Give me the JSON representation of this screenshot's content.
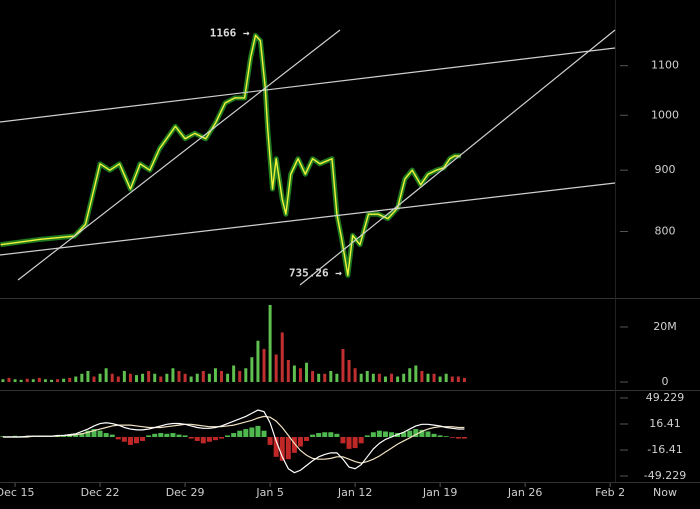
{
  "chart_data": [
    {
      "type": "line",
      "log_scale": true,
      "color": "#f2f23a",
      "shadow_color": "#1f7a1f",
      "xlim": [
        -1.24,
        49.4
      ],
      "ylim": [
        704,
        1248
      ],
      "xticks": [
        {
          "value": 0,
          "label": "Dec 15"
        },
        {
          "value": 7,
          "label": "Dec 22"
        },
        {
          "value": 14,
          "label": "Dec 29"
        },
        {
          "value": 21,
          "label": "Jan 5"
        },
        {
          "value": 28,
          "label": "Jan 12"
        },
        {
          "value": 35,
          "label": "Jan 19"
        },
        {
          "value": 42,
          "label": "Jan 26"
        },
        {
          "value": 49,
          "label": "Feb 2"
        }
      ],
      "yticks": [
        800,
        900,
        1000,
        1100
      ],
      "x": [
        -1.2,
        2.1,
        4.9,
        5.8,
        7.0,
        7.8,
        8.6,
        9.5,
        10.3,
        11.1,
        11.9,
        12.8,
        13.2,
        14.0,
        14.8,
        15.7,
        16.5,
        17.3,
        18.1,
        18.9,
        19.4,
        19.8,
        20.2,
        20.6,
        20.8,
        21.2,
        21.5,
        22.0,
        22.3,
        22.7,
        23.3,
        23.9,
        24.5,
        25.1,
        26.1,
        26.5,
        26.9,
        27.4,
        27.8,
        28.4,
        29.1,
        29.9,
        30.7,
        31.5,
        32.1,
        32.7,
        33.4,
        34.0,
        34.7,
        35.3,
        35.8,
        36.2,
        36.7
      ],
      "values": [
        780,
        788,
        793,
        811,
        911,
        900,
        911,
        868,
        911,
        900,
        938,
        966,
        979,
        956,
        966,
        956,
        985,
        1024,
        1034,
        1034,
        1118,
        1166,
        1154,
        1054,
        975,
        868,
        920,
        851,
        827,
        893,
        920,
        893,
        920,
        911,
        920,
        827,
        788,
        735.26,
        794,
        780,
        827,
        827,
        820,
        837,
        885,
        900,
        875,
        893,
        900,
        904,
        920,
        925,
        925
      ],
      "annotations": [
        {
          "text": "1166 →",
          "x": 19.8,
          "y": 1166
        },
        {
          "text": "735.26 →",
          "x": 27.4,
          "y": 735.26
        }
      ]
    },
    {
      "type": "bar",
      "xlim": [
        -1.24,
        49.4
      ],
      "ylim": [
        -2900000,
        29800000
      ],
      "yticks": [
        {
          "value": 20000000,
          "label": "20M"
        },
        0
      ],
      "x": [
        -1,
        -0.5,
        0,
        0.5,
        1,
        1.5,
        2,
        2.5,
        3,
        3.5,
        4,
        4.5,
        5,
        5.5,
        6,
        6.5,
        7,
        7.5,
        8,
        8.5,
        9,
        9.5,
        10,
        10.5,
        11,
        11.5,
        12,
        12.5,
        13,
        13.5,
        14,
        14.5,
        15,
        15.5,
        16,
        16.5,
        17,
        17.5,
        18,
        18.5,
        19,
        19.5,
        20,
        20.5,
        21,
        21.5,
        22,
        22.5,
        23,
        23.5,
        24,
        24.5,
        25,
        25.5,
        26,
        26.5,
        27,
        27.5,
        28,
        28.5,
        29,
        29.5,
        30,
        30.5,
        31,
        31.5,
        32,
        32.5,
        33,
        33.5,
        34,
        34.5,
        35,
        35.5,
        36,
        36.5,
        37
      ],
      "values": [
        1000000,
        1500000,
        1000000,
        800000,
        1200000,
        1000000,
        1500000,
        1000000,
        800000,
        1000000,
        1200000,
        1500000,
        2000000,
        3000000,
        4000000,
        2000000,
        3000000,
        5000000,
        3000000,
        2000000,
        4000000,
        3000000,
        2500000,
        3000000,
        4000000,
        3000000,
        2000000,
        3000000,
        5000000,
        4000000,
        3000000,
        2000000,
        3000000,
        4000000,
        3000000,
        5000000,
        4000000,
        3000000,
        6000000,
        4000000,
        5000000,
        9000000,
        15000000,
        12000000,
        28000000,
        10000000,
        18000000,
        8000000,
        6000000,
        5000000,
        7000000,
        4000000,
        3000000,
        3000000,
        4000000,
        3000000,
        12000000,
        8000000,
        5000000,
        3000000,
        4000000,
        3000000,
        3000000,
        2000000,
        3000000,
        2000000,
        3000000,
        5000000,
        6000000,
        4000000,
        3000000,
        3000000,
        2000000,
        3000000,
        2000000,
        2000000,
        1500000
      ],
      "colors": [
        "#5fbf4f",
        "#c03030",
        "#5fbf4f",
        "#5fbf4f",
        "#c03030",
        "#5fbf4f",
        "#c03030",
        "#5fbf4f",
        "#5fbf4f",
        "#c03030",
        "#5fbf4f",
        "#c03030",
        "#5fbf4f",
        "#5fbf4f",
        "#5fbf4f",
        "#c03030",
        "#5fbf4f",
        "#5fbf4f",
        "#c03030",
        "#c03030",
        "#5fbf4f",
        "#c03030",
        "#5fbf4f",
        "#5fbf4f",
        "#c03030",
        "#5fbf4f",
        "#c03030",
        "#5fbf4f",
        "#5fbf4f",
        "#c03030",
        "#c03030",
        "#5fbf4f",
        "#5fbf4f",
        "#c03030",
        "#5fbf4f",
        "#5fbf4f",
        "#c03030",
        "#5fbf4f",
        "#5fbf4f",
        "#c03030",
        "#5fbf4f",
        "#5fbf4f",
        "#5fbf4f",
        "#c03030",
        "#5fbf4f",
        "#c03030",
        "#c03030",
        "#c03030",
        "#5fbf4f",
        "#c03030",
        "#5fbf4f",
        "#c03030",
        "#5fbf4f",
        "#c03030",
        "#5fbf4f",
        "#5fbf4f",
        "#c03030",
        "#c03030",
        "#c03030",
        "#5fbf4f",
        "#5fbf4f",
        "#5fbf4f",
        "#c03030",
        "#5fbf4f",
        "#c03030",
        "#5fbf4f",
        "#5fbf4f",
        "#5fbf4f",
        "#5fbf4f",
        "#c03030",
        "#5fbf4f",
        "#c03030",
        "#5fbf4f",
        "#5fbf4f",
        "#c03030",
        "#c03030",
        "#c03030"
      ]
    },
    {
      "type": "macd",
      "xlim": [
        -1.24,
        49.4
      ],
      "ylim": [
        -56.8,
        56.8
      ],
      "yticks": [
        49.229,
        16.41,
        -16.41,
        -49.229
      ],
      "up_color": "#4fb84f",
      "down_color": "#c02828",
      "macd_color": "#ffffff",
      "signal_color": "#f0e2c0",
      "x": [
        -1,
        -0.5,
        0,
        0.5,
        1,
        1.5,
        2,
        2.5,
        3,
        3.5,
        4,
        4.5,
        5,
        5.5,
        6,
        6.5,
        7,
        7.5,
        8,
        8.5,
        9,
        9.5,
        10,
        10.5,
        11,
        11.5,
        12,
        12.5,
        13,
        13.5,
        14,
        14.5,
        15,
        15.5,
        16,
        16.5,
        17,
        17.5,
        18,
        18.5,
        19,
        19.5,
        20,
        20.5,
        21,
        21.5,
        22,
        22.5,
        23,
        23.5,
        24,
        24.5,
        25,
        25.5,
        26,
        26.5,
        27,
        27.5,
        28,
        28.5,
        29,
        29.5,
        30,
        30.5,
        31,
        31.5,
        32,
        32.5,
        33,
        33.5,
        34,
        34.5,
        35,
        35.5,
        36,
        36.5,
        37
      ],
      "histogram": [
        1,
        1,
        1.5,
        1,
        1,
        0.5,
        0.5,
        0.5,
        1,
        1,
        1.5,
        2,
        3,
        5,
        8,
        10,
        8,
        5,
        3,
        -3,
        -6,
        -10,
        -8,
        -5,
        2,
        4,
        5,
        4,
        5,
        3,
        2,
        -2,
        -5,
        -8,
        -6,
        -4,
        -2,
        2,
        5,
        8,
        10,
        12,
        14,
        8,
        -10,
        -25,
        -30,
        -28,
        -20,
        -12,
        -5,
        3,
        5,
        6,
        6,
        4,
        -8,
        -15,
        -14,
        -8,
        2,
        6,
        8,
        7,
        6,
        5,
        6,
        8,
        10,
        9,
        7,
        4,
        2,
        1,
        -1,
        -2,
        -2
      ],
      "macd": [
        0,
        0,
        0,
        0,
        1,
        1,
        1,
        1,
        1,
        2,
        2,
        3,
        4,
        7,
        10,
        14,
        17,
        18,
        17,
        15,
        12,
        10,
        9,
        9,
        10,
        12,
        14,
        16,
        17,
        17,
        16,
        14,
        12,
        11,
        11,
        12,
        14,
        17,
        20,
        23,
        26,
        30,
        34,
        32,
        18,
        -5,
        -25,
        -40,
        -45,
        -42,
        -36,
        -30,
        -25,
        -22,
        -20,
        -20,
        -28,
        -38,
        -40,
        -35,
        -25,
        -15,
        -8,
        -3,
        0,
        3,
        6,
        10,
        14,
        16,
        16,
        15,
        14,
        12,
        11,
        10,
        10
      ],
      "signal": [
        0,
        0,
        0,
        0,
        0,
        1,
        1,
        1,
        1,
        1,
        2,
        2,
        3,
        4,
        6,
        8,
        10,
        12,
        14,
        15,
        15,
        15,
        14,
        13,
        12,
        12,
        12,
        13,
        14,
        15,
        16,
        16,
        15,
        14,
        13,
        13,
        13,
        14,
        15,
        17,
        19,
        21,
        24,
        26,
        25,
        20,
        12,
        2,
        -8,
        -17,
        -23,
        -27,
        -28,
        -28,
        -27,
        -25,
        -25,
        -28,
        -31,
        -33,
        -31,
        -28,
        -24,
        -19,
        -14,
        -9,
        -5,
        -1,
        3,
        7,
        10,
        12,
        13,
        13,
        13,
        12,
        12
      ]
    }
  ],
  "now_label": "Now"
}
